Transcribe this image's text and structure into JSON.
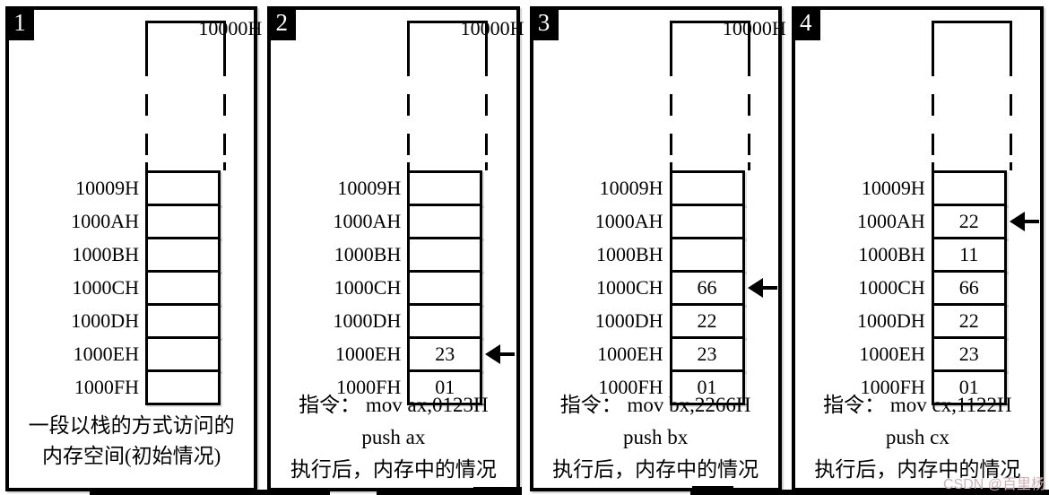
{
  "watermark": "CSDN @百里杨",
  "colors": {
    "ink": "#000000",
    "paper": "#ffffff",
    "watermark": "#cdb2b7"
  },
  "panels": [
    {
      "badge": "1",
      "top_address": "10000H",
      "rows": [
        {
          "addr": "10009H",
          "val": ""
        },
        {
          "addr": "1000AH",
          "val": ""
        },
        {
          "addr": "1000BH",
          "val": ""
        },
        {
          "addr": "1000CH",
          "val": ""
        },
        {
          "addr": "1000DH",
          "val": ""
        },
        {
          "addr": "1000EH",
          "val": ""
        },
        {
          "addr": "1000FH",
          "val": ""
        }
      ],
      "arrow_row": null,
      "caption_lines": [
        "一段以栈的方式访问的",
        "内存空间(初始情况)"
      ]
    },
    {
      "badge": "2",
      "top_address": "10000H",
      "rows": [
        {
          "addr": "10009H",
          "val": ""
        },
        {
          "addr": "1000AH",
          "val": ""
        },
        {
          "addr": "1000BH",
          "val": ""
        },
        {
          "addr": "1000CH",
          "val": ""
        },
        {
          "addr": "1000DH",
          "val": ""
        },
        {
          "addr": "1000EH",
          "val": "23"
        },
        {
          "addr": "1000FH",
          "val": "01"
        }
      ],
      "arrow_row": 5,
      "caption_lines": [
        "指令： mov ax,0123H",
        "push ax",
        "执行后，内存中的情况"
      ]
    },
    {
      "badge": "3",
      "top_address": "10000H",
      "rows": [
        {
          "addr": "10009H",
          "val": ""
        },
        {
          "addr": "1000AH",
          "val": ""
        },
        {
          "addr": "1000BH",
          "val": ""
        },
        {
          "addr": "1000CH",
          "val": "66"
        },
        {
          "addr": "1000DH",
          "val": "22"
        },
        {
          "addr": "1000EH",
          "val": "23"
        },
        {
          "addr": "1000FH",
          "val": "01"
        }
      ],
      "arrow_row": 3,
      "caption_lines": [
        "指令： mov bx,2266H",
        "push bx",
        "执行后，内存中的情况"
      ]
    },
    {
      "badge": "4",
      "top_address": "10000H",
      "rows": [
        {
          "addr": "10009H",
          "val": ""
        },
        {
          "addr": "1000AH",
          "val": "22"
        },
        {
          "addr": "1000BH",
          "val": "11"
        },
        {
          "addr": "1000CH",
          "val": "66"
        },
        {
          "addr": "1000DH",
          "val": "22"
        },
        {
          "addr": "1000EH",
          "val": "23"
        },
        {
          "addr": "1000FH",
          "val": "01"
        }
      ],
      "arrow_row": 1,
      "caption_lines": [
        "指令： mov cx,1122H",
        "push cx",
        "执行后，内存中的情况"
      ]
    }
  ]
}
